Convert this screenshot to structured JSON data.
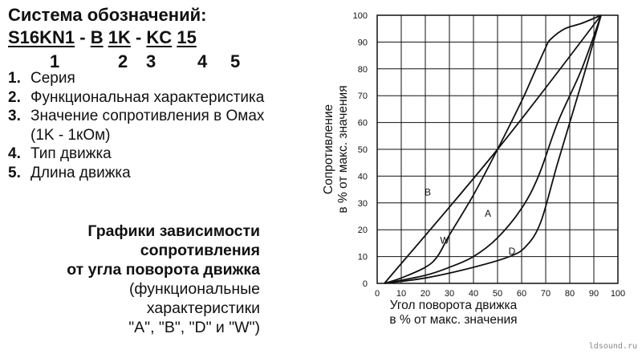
{
  "left": {
    "title": "Система обозначений:",
    "code": {
      "part1": "S16KN1",
      "sep1": " - ",
      "part2": "B",
      "sep2": " ",
      "part3": "1K",
      "sep3": " - ",
      "part4": "KC",
      "sep4": " ",
      "part5": "15"
    },
    "code_numbers": [
      "1",
      "2",
      "3",
      "4",
      "5"
    ],
    "legend": [
      {
        "num": "1.",
        "text": "Серия"
      },
      {
        "num": "2.",
        "text": "Функциональная характеристика"
      },
      {
        "num": "3.",
        "text": "Значение сопротивления в Омах (1K - 1кОм)"
      },
      {
        "num": "4.",
        "text": "Тип движка"
      },
      {
        "num": "5.",
        "text": "Длина движка"
      }
    ],
    "caption_bold": [
      "Графики зависимости",
      "сопротивления",
      "от угла поворота движка"
    ],
    "caption_regular": [
      "(функциональные",
      "характеристики",
      "\"A\", \"B\", \"D\" и \"W\")"
    ]
  },
  "watermark": "ldsound.ru",
  "chart_data": {
    "type": "line",
    "xlabel": "Угол поворота движка\nв % от макс. значения",
    "ylabel": "Сопротивление\nв % от макс. значения",
    "xlim": [
      0,
      100
    ],
    "ylim": [
      0,
      100
    ],
    "xticks": [
      0,
      10,
      20,
      30,
      40,
      50,
      60,
      70,
      80,
      90,
      100
    ],
    "yticks": [
      0,
      10,
      20,
      30,
      40,
      50,
      60,
      70,
      80,
      90,
      100
    ],
    "grid": true,
    "series": [
      {
        "name": "B",
        "x": [
          3,
          50,
          93
        ],
        "y": [
          0,
          50,
          100
        ]
      },
      {
        "name": "W",
        "x": [
          3,
          10,
          20,
          25,
          30,
          40,
          50,
          60,
          65,
          70,
          72,
          78,
          85,
          93
        ],
        "y": [
          0,
          2,
          6,
          10,
          18,
          33,
          50,
          68,
          78,
          88,
          91,
          95,
          97,
          100
        ]
      },
      {
        "name": "A",
        "x": [
          3,
          20,
          30,
          40,
          50,
          60,
          67,
          75,
          85,
          93
        ],
        "y": [
          0,
          3,
          6,
          10,
          17,
          28,
          40,
          60,
          80,
          100
        ]
      },
      {
        "name": "D",
        "x": [
          3,
          20,
          40,
          55,
          62,
          68,
          75,
          85,
          93
        ],
        "y": [
          0,
          2,
          6,
          10,
          14,
          23,
          45,
          75,
          100
        ]
      }
    ],
    "annotations": [
      {
        "text": "B",
        "x": 21,
        "y": 34
      },
      {
        "text": "W",
        "x": 28,
        "y": 16
      },
      {
        "text": "A",
        "x": 46,
        "y": 26
      },
      {
        "text": "D",
        "x": 56,
        "y": 12
      }
    ],
    "colors": {
      "line": "#111111",
      "grid": "#111111",
      "background": "#ffffff"
    }
  }
}
